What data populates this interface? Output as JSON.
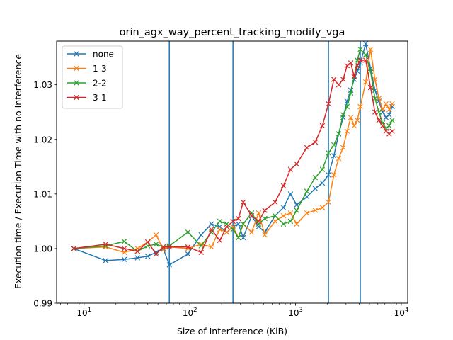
{
  "chart_data": {
    "type": "line",
    "title": "orin_agx_way_percent_tracking_modify_vga",
    "xlabel": "Size of Interference (KiB)",
    "ylabel": "Execution time / Execution Time with no Interference",
    "xscale": "log",
    "xlim": [
      5.5,
      11500
    ],
    "ylim": [
      0.99,
      1.038
    ],
    "xticks": [
      {
        "value": 10,
        "base": "10",
        "exp": "1"
      },
      {
        "value": 100,
        "base": "10",
        "exp": "2"
      },
      {
        "value": 1000,
        "base": "10",
        "exp": "3"
      },
      {
        "value": 10000,
        "base": "10",
        "exp": "4"
      }
    ],
    "yticks": [
      {
        "value": 0.99,
        "label": "0.99"
      },
      {
        "value": 1.0,
        "label": "1.00"
      },
      {
        "value": 1.01,
        "label": "1.01"
      },
      {
        "value": 1.02,
        "label": "1.02"
      },
      {
        "value": 1.03,
        "label": "1.03"
      }
    ],
    "vlines": [
      64,
      256,
      2048,
      4096
    ],
    "vline_color": "#1f77b4",
    "grid": false,
    "legend_position": "top-left",
    "marker": "x",
    "series": [
      {
        "name": "none",
        "color": "#1f77b4",
        "x": [
          8,
          16,
          24,
          32,
          40,
          48,
          56,
          64,
          96,
          128,
          160,
          192,
          224,
          256,
          288,
          320,
          384,
          448,
          512,
          640,
          768,
          896,
          1024,
          1280,
          1536,
          1792,
          2048,
          2304,
          2560,
          2816,
          3072,
          3328,
          3584,
          3840,
          4096,
          4608,
          5120,
          5632,
          6144,
          6656,
          7168,
          7680,
          8192
        ],
        "y": [
          1.0,
          0.9978,
          0.998,
          0.9983,
          0.9986,
          0.9993,
          1.0,
          0.997,
          0.999,
          1.0025,
          1.0045,
          1.004,
          1.003,
          1.004,
          1.0045,
          1.002,
          1.006,
          1.004,
          1.003,
          1.006,
          1.0075,
          1.01,
          1.008,
          1.0095,
          1.011,
          1.012,
          1.0135,
          1.017,
          1.021,
          1.024,
          1.027,
          1.029,
          1.031,
          1.0325,
          1.034,
          1.0375,
          1.033,
          1.029,
          1.027,
          1.025,
          1.024,
          1.0245,
          1.026
        ]
      },
      {
        "name": "1-3",
        "color": "#ff7f0e",
        "x": [
          8,
          16,
          24,
          32,
          40,
          48,
          56,
          64,
          96,
          128,
          160,
          192,
          224,
          256,
          288,
          320,
          384,
          448,
          512,
          640,
          768,
          896,
          1024,
          1280,
          1536,
          1792,
          2048,
          2304,
          2560,
          2816,
          3072,
          3328,
          3584,
          3840,
          4096,
          4608,
          5120,
          5632,
          6144,
          6656,
          7168,
          7680,
          8192
        ],
        "y": [
          1.0,
          1.0003,
          0.9993,
          1.0,
          1.0012,
          1.0025,
          0.9998,
          1.0003,
          1.0,
          1.0008,
          1.0003,
          1.0035,
          1.003,
          1.004,
          1.002,
          1.0045,
          1.003,
          1.0065,
          1.0025,
          1.005,
          1.006,
          1.0065,
          1.0045,
          1.0065,
          1.007,
          1.0075,
          1.0085,
          1.0135,
          1.0165,
          1.0185,
          1.0215,
          1.024,
          1.0225,
          1.0235,
          1.026,
          1.0305,
          1.0365,
          1.031,
          1.0275,
          1.0255,
          1.0265,
          1.0255,
          1.0265
        ]
      },
      {
        "name": "2-2",
        "color": "#2ca02c",
        "x": [
          8,
          16,
          24,
          32,
          40,
          48,
          56,
          64,
          96,
          128,
          160,
          192,
          224,
          256,
          288,
          320,
          384,
          448,
          512,
          640,
          768,
          896,
          1024,
          1280,
          1536,
          1792,
          2048,
          2304,
          2560,
          2816,
          3072,
          3328,
          3584,
          3840,
          4096,
          4608,
          5120,
          5632,
          6144,
          6656,
          7168,
          7680,
          8192
        ],
        "y": [
          1.0,
          1.0005,
          1.0013,
          0.9995,
          1.0005,
          1.0008,
          1.0003,
          1.0005,
          1.003,
          1.0005,
          1.003,
          1.005,
          1.0045,
          1.0035,
          1.002,
          1.0045,
          1.0065,
          1.0045,
          1.0055,
          1.006,
          1.0045,
          1.005,
          1.007,
          1.0105,
          1.013,
          1.0145,
          1.0175,
          1.019,
          1.021,
          1.0245,
          1.026,
          1.0285,
          1.0315,
          1.0345,
          1.0365,
          1.0355,
          1.0325,
          1.0275,
          1.025,
          1.023,
          1.022,
          1.0225,
          1.0235
        ]
      },
      {
        "name": "3-1",
        "color": "#d62728",
        "x": [
          8,
          16,
          24,
          32,
          40,
          48,
          56,
          64,
          96,
          128,
          160,
          192,
          224,
          256,
          288,
          320,
          384,
          448,
          512,
          640,
          768,
          896,
          1024,
          1280,
          1536,
          1792,
          2048,
          2304,
          2560,
          2816,
          3072,
          3328,
          3584,
          3840,
          4096,
          4608,
          5120,
          5632,
          6144,
          6656,
          7168,
          7680,
          8192
        ],
        "y": [
          1.0,
          1.0008,
          1.0,
          0.9995,
          1.0012,
          0.999,
          1.0003,
          1.0003,
          1.0003,
          0.9993,
          1.0035,
          1.0015,
          1.004,
          1.005,
          1.0055,
          1.0085,
          1.006,
          1.005,
          1.007,
          1.0085,
          1.0115,
          1.0145,
          1.0155,
          1.0185,
          1.0195,
          1.0225,
          1.0265,
          1.031,
          1.03,
          1.031,
          1.0335,
          1.034,
          1.0315,
          1.0335,
          1.0345,
          1.0345,
          1.0295,
          1.025,
          1.0235,
          1.0225,
          1.0215,
          1.021,
          1.0215
        ]
      }
    ]
  }
}
